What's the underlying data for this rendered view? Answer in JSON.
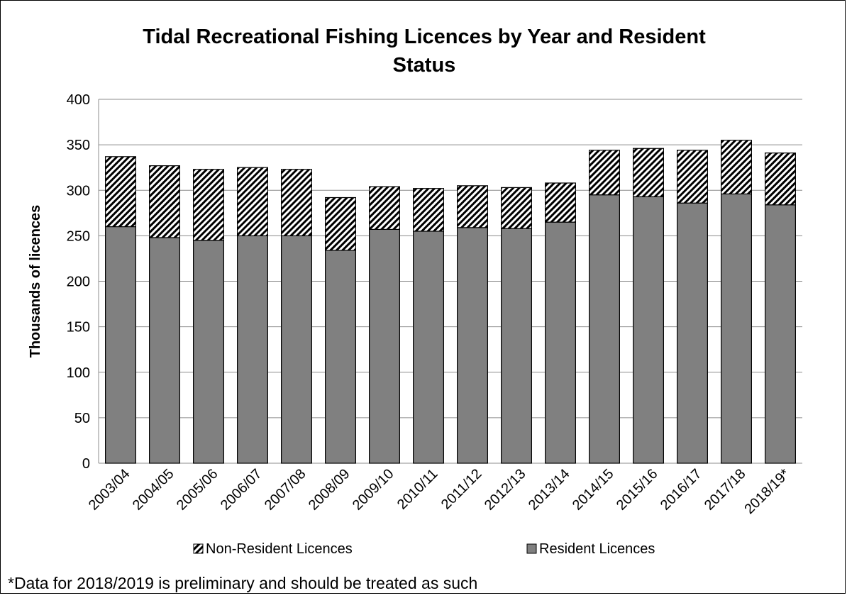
{
  "chart_data": {
    "type": "bar",
    "stacked": true,
    "title": "Tidal Recreational Fishing Licences by Year and Resident Status",
    "title_lines": [
      "Tidal Recreational Fishing Licences by Year and Resident",
      "Status"
    ],
    "xlabel": "",
    "ylabel": "Thousands of licences",
    "ylim": [
      0,
      400
    ],
    "yticks": [
      0,
      50,
      100,
      150,
      200,
      250,
      300,
      350,
      400
    ],
    "grid": true,
    "legend_placement": "bottom",
    "categories": [
      "2003/04",
      "2004/05",
      "2005/06",
      "2006/07",
      "2007/08",
      "2008/09",
      "2009/10",
      "2010/11",
      "2011/12",
      "2012/13",
      "2013/14",
      "2014/15",
      "2015/16",
      "2016/17",
      "2017/18",
      "2018/19*"
    ],
    "series": [
      {
        "name": "Resident Licences",
        "color": "#808080",
        "pattern": "solid",
        "values": [
          260,
          248,
          245,
          250,
          250,
          234,
          257,
          255,
          259,
          258,
          265,
          295,
          293,
          286,
          296,
          284
        ]
      },
      {
        "name": "Non-Resident Licences",
        "color": "#000000",
        "pattern": "diagonal-hatch",
        "values": [
          77,
          79,
          78,
          75,
          73,
          58,
          47,
          47,
          46,
          45,
          43,
          49,
          53,
          58,
          59,
          57
        ]
      }
    ],
    "legend_order": [
      "Non-Resident Licences",
      "Resident Licences"
    ],
    "footnote": "*Data for 2018/2019 is preliminary and should be treated as such"
  }
}
